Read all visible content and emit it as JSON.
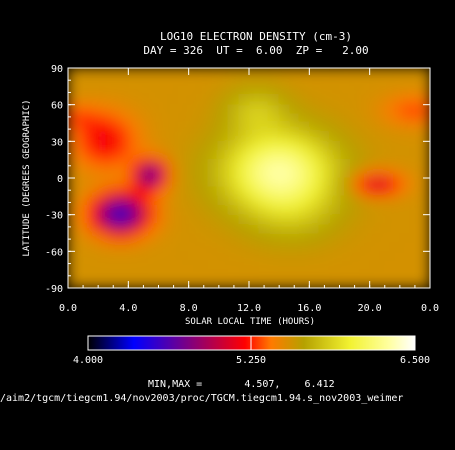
{
  "chart_data": {
    "type": "heatmap",
    "title": "LOG10 ELECTRON DENSITY (cm-3)",
    "subtitle": "DAY = 326  UT =  6.00  ZP =   2.00",
    "xlabel": "SOLAR LOCAL TIME (HOURS)",
    "ylabel": "LATITUDE (DEGREES GEOGRAPHIC)",
    "xlim": [
      0,
      24
    ],
    "ylim": [
      -90,
      90
    ],
    "x_tick_labels": [
      "0.0",
      "4.0",
      "8.0",
      "12.0",
      "16.0",
      "20.0",
      "0.0"
    ],
    "y_tick_labels": [
      "90",
      "60",
      "30",
      "0",
      "-30",
      "-60",
      "-90"
    ],
    "colorbar": {
      "min_label": "4.000",
      "mid_label": "5.250",
      "max_label": "6.500",
      "min": 4.0,
      "max": 6.5,
      "colors": [
        "#000000",
        "#0000ff",
        "#ff0000",
        "#ff7a00",
        "#b5a100",
        "#f2f230",
        "#ffffa0",
        "#ffffff"
      ]
    },
    "minmax_text": "MIN,MAX =       4.507,    6.412",
    "min": 4.507,
    "max": 6.412,
    "features": [
      {
        "type": "enhancement",
        "center_lt": 14.0,
        "center_lat": 5,
        "peak": 6.4
      },
      {
        "type": "depletion",
        "center_lt": 3.5,
        "center_lat": -30,
        "min": 4.5
      },
      {
        "type": "depletion",
        "center_lt": 20.5,
        "center_lat": -5,
        "min": 5.0
      }
    ]
  },
  "footer_path": "/aim2/tgcm/tiegcm1.94/nov2003/proc/TGCM.tiegcm1.94.s_nov2003_weimer"
}
